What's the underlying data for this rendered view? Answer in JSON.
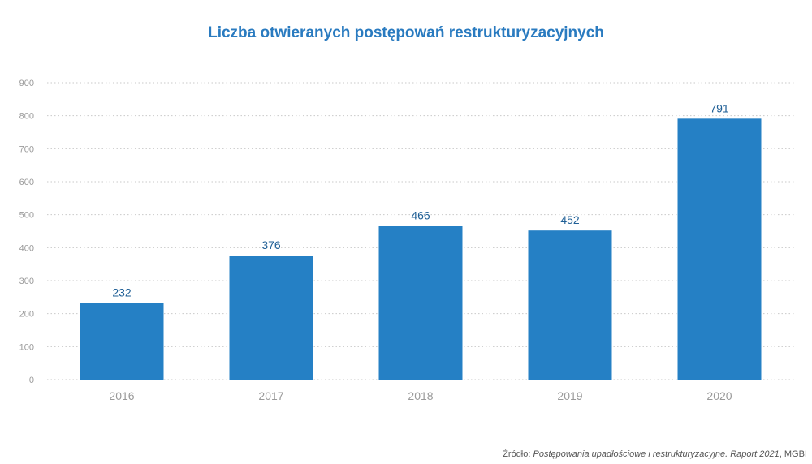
{
  "title": "Liczba otwieranych postępowań restrukturyzacyjnych",
  "source": {
    "prefix": "Źródło: ",
    "italic": "Postępowania upadłościowe i restrukturyzacyjne. Raport 2021",
    "suffix": ", MGBI"
  },
  "colors": {
    "bar": "#2580c5",
    "title": "#2a7bc0",
    "value_label": "#1f5f96",
    "grid": "#c9c9c9",
    "tick": "#9a9a9a"
  },
  "chart_data": {
    "type": "bar",
    "title": "Liczba otwieranych postępowań restrukturyzacyjnych",
    "categories": [
      "2016",
      "2017",
      "2018",
      "2019",
      "2020"
    ],
    "values": [
      232,
      376,
      466,
      452,
      791
    ],
    "data_labels": [
      "232",
      "376",
      "466",
      "452",
      "791"
    ],
    "xlabel": "",
    "ylabel": "",
    "ylim": [
      0,
      900
    ],
    "yticks": [
      0,
      100,
      200,
      300,
      400,
      500,
      600,
      700,
      800,
      900
    ],
    "ytick_labels": [
      "0",
      "100",
      "200",
      "300",
      "400",
      "500",
      "600",
      "700",
      "800",
      "900"
    ],
    "grid": true,
    "legend": "none"
  }
}
